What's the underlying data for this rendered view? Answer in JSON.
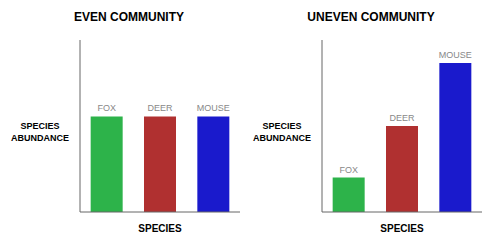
{
  "chart_data": [
    {
      "type": "bar",
      "title": "EVEN COMMUNITY",
      "categories": [
        "FOX",
        "DEER",
        "MOUSE"
      ],
      "values": [
        5,
        5,
        5
      ],
      "colors": [
        "#2db34a",
        "#b03030",
        "#1a1acc"
      ],
      "x_label": "SPECIES",
      "y_label": "SPECIES\nABUNDANCE",
      "ylim": [
        0,
        9
      ],
      "yticks": [
        0,
        1.5,
        3,
        4.5,
        6,
        7.5,
        9
      ],
      "tick_labels": false,
      "grid": false
    },
    {
      "type": "bar",
      "title": "UNEVEN COMMUNITY",
      "categories": [
        "FOX",
        "DEER",
        "MOUSE"
      ],
      "values": [
        1.8,
        4.5,
        7.8
      ],
      "colors": [
        "#2db34a",
        "#b03030",
        "#1a1acc"
      ],
      "x_label": "SPECIES",
      "y_label": "SPECIES\nABUNDANCE",
      "ylim": [
        0,
        9
      ],
      "yticks": [
        0,
        1.5,
        3,
        4.5,
        6,
        7.5,
        9
      ],
      "tick_labels": false,
      "grid": false
    }
  ]
}
